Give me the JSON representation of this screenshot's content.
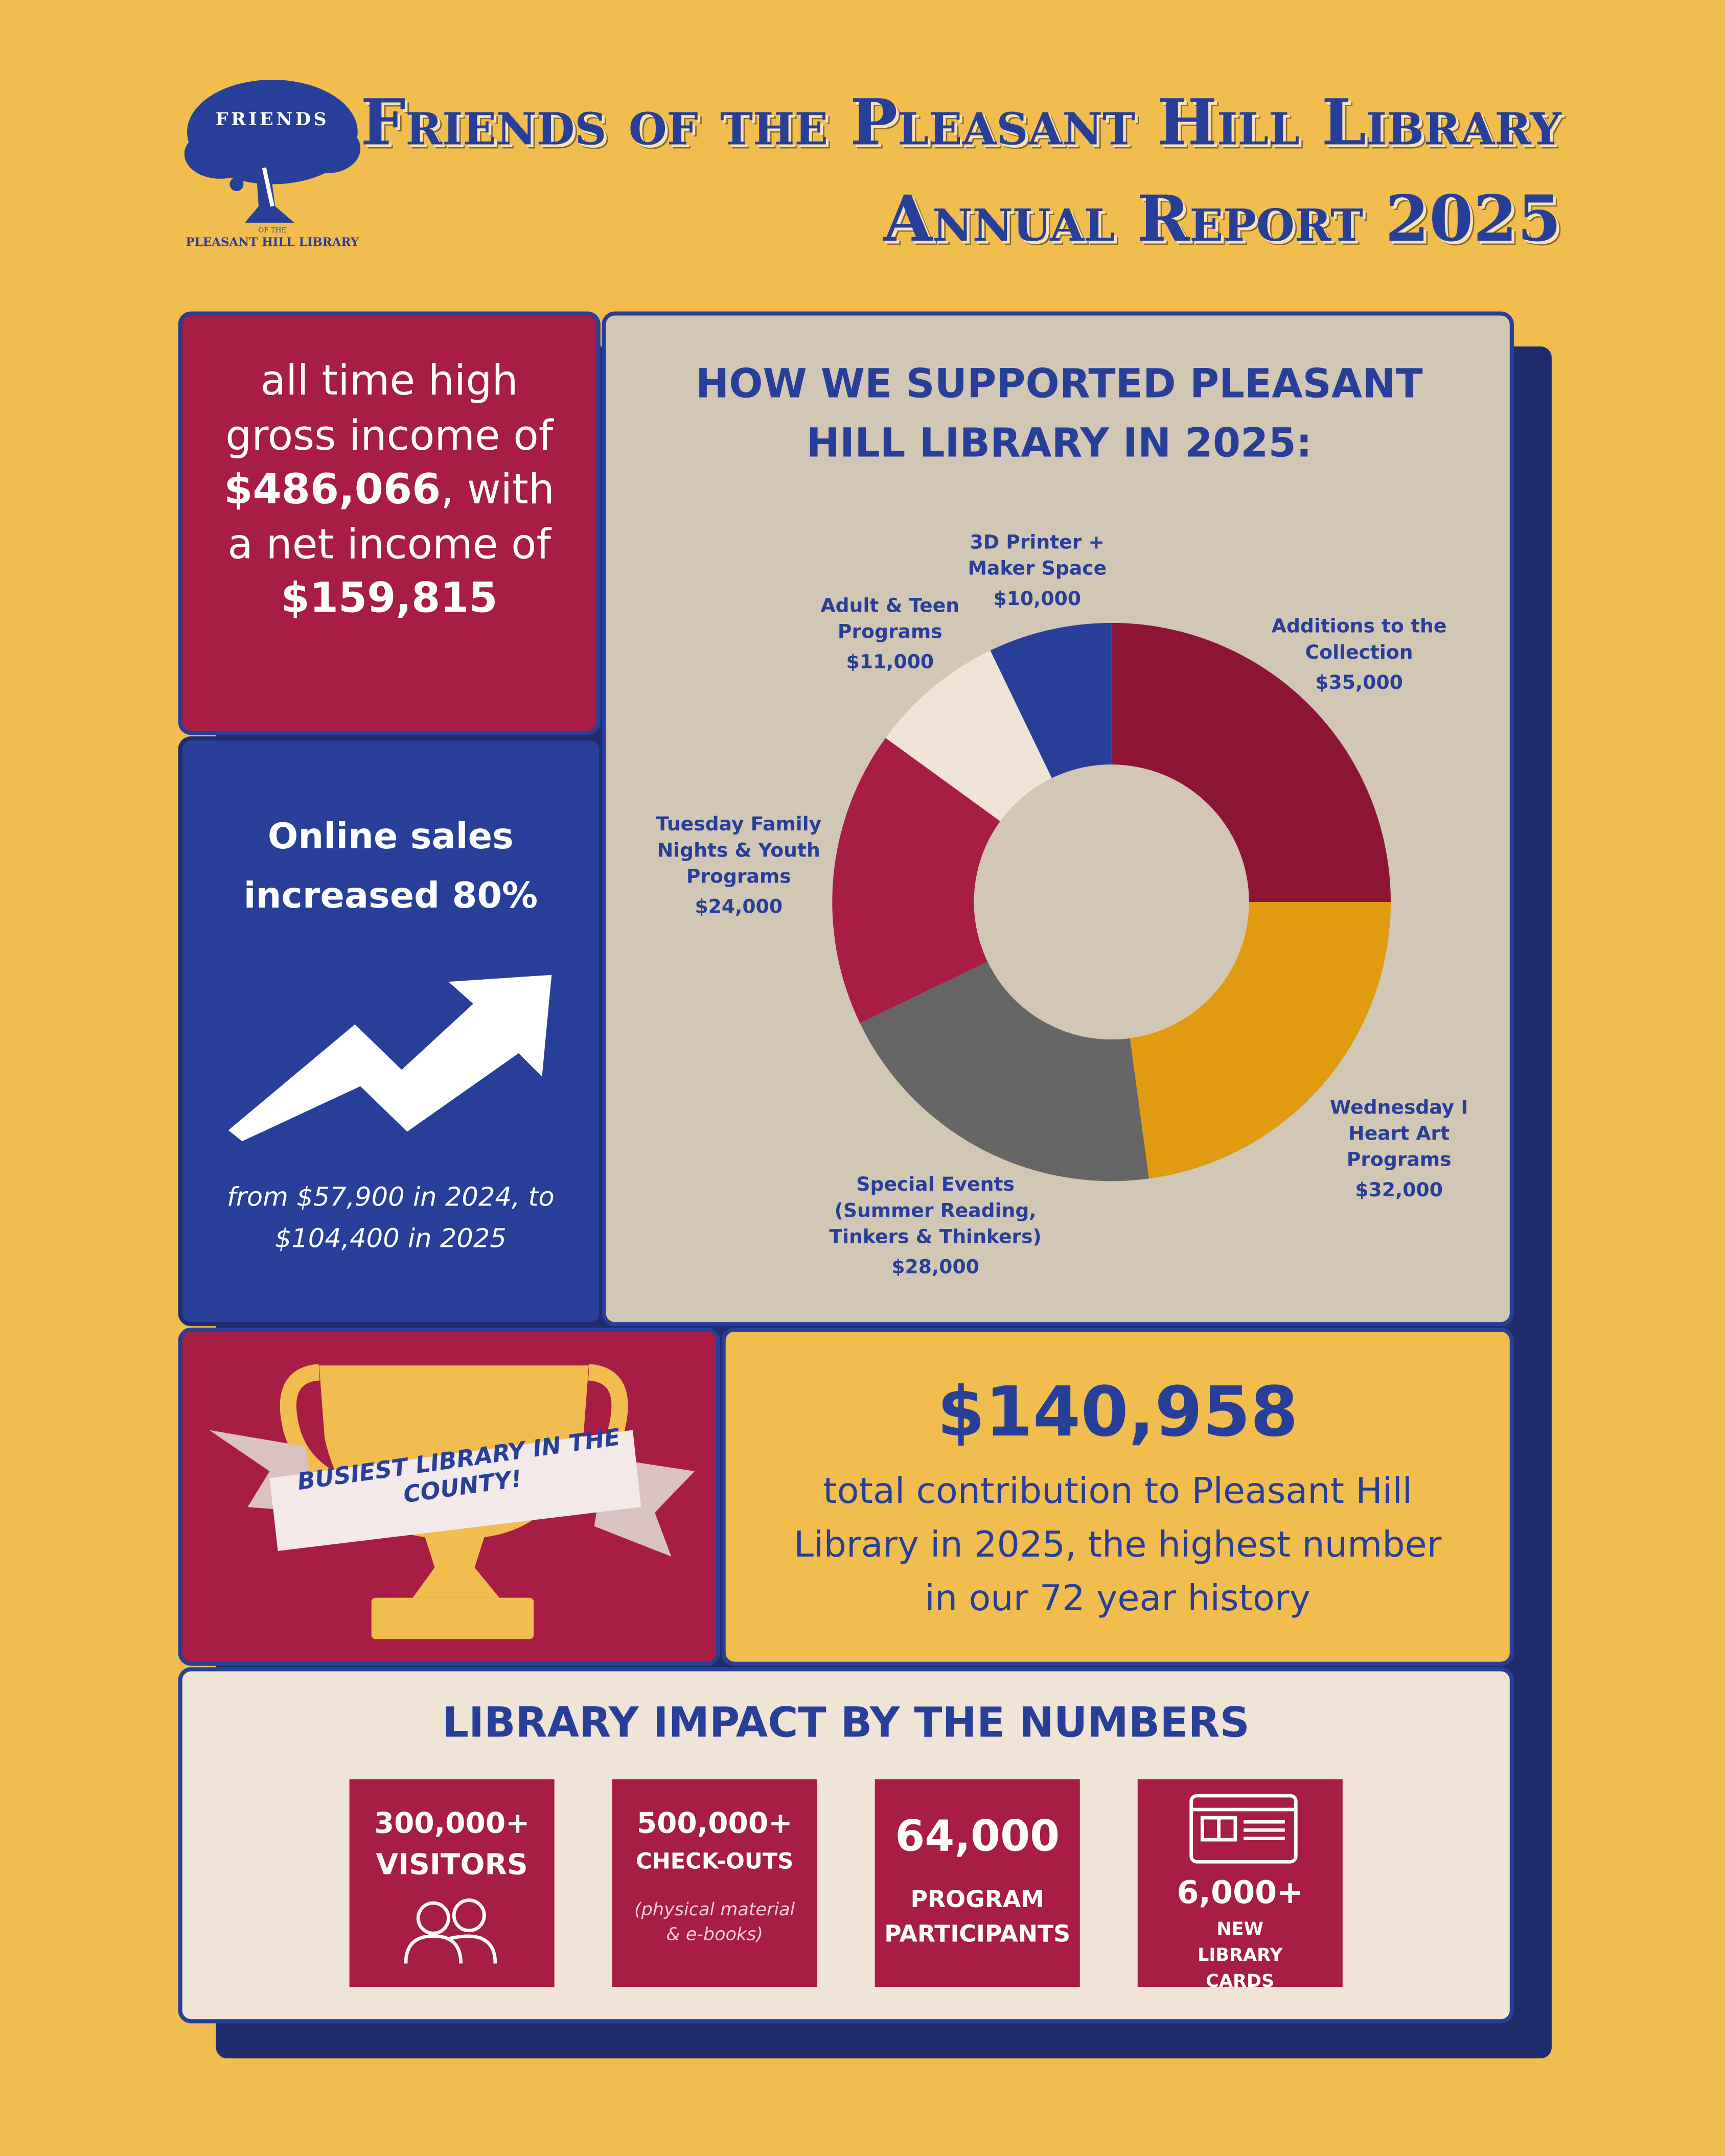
{
  "header": {
    "title": "Friends of the Pleasant Hill Library",
    "subtitle": "Annual Report 2025",
    "logo": {
      "top": "FRIENDS",
      "middle": "OF THE",
      "bottom": "PLEASANT HILL LIBRARY"
    }
  },
  "income": {
    "parts": [
      "all time high gross income of ",
      "$486,066",
      ", with a net income of ",
      "$159,815"
    ]
  },
  "online_sales": {
    "headline": "Online sales increased 80%",
    "detail": "from $57,900 in 2024, to $104,400 in 2025"
  },
  "award": {
    "ribbon": "BUSIEST LIBRARY IN THE COUNTY!"
  },
  "contribution": {
    "amount": "$140,958",
    "text": "total contribution to Pleasant Hill Library in 2025, the highest number in our 72 year history"
  },
  "chart_data": {
    "type": "donut",
    "title": "HOW WE SUPPORTED PLEASANT HILL LIBRARY IN 2025:",
    "categories": [
      "Additions to the Collection",
      "Wednesday I Heart Art Programs",
      "Special Events (Summer Reading, Tinkers & Thinkers)",
      "Tuesday Family Nights & Youth Programs",
      "Adult & Teen Programs",
      "3D Printer + Maker Space"
    ],
    "values": [
      35000,
      32000,
      28000,
      24000,
      11000,
      10000
    ],
    "value_labels": [
      "$35,000",
      "$32,000",
      "$28,000",
      "$24,000",
      "$11,000",
      "$10,000"
    ],
    "colors": [
      "#8c1535",
      "#e09b10",
      "#666666",
      "#a81d44",
      "#efe4d5",
      "#283f99"
    ]
  },
  "impact": {
    "title": "LIBRARY IMPACT BY THE NUMBERS",
    "stats": [
      {
        "value": "300,000+",
        "label": "VISITORS"
      },
      {
        "value": "500,000+",
        "label": "CHECK-OUTS",
        "note": "(physical material & e-books)"
      },
      {
        "value": "64,000",
        "label": "PROGRAM PARTICIPANTS"
      },
      {
        "value": "6,000+",
        "label": "NEW LIBRARY CARDS"
      }
    ]
  }
}
